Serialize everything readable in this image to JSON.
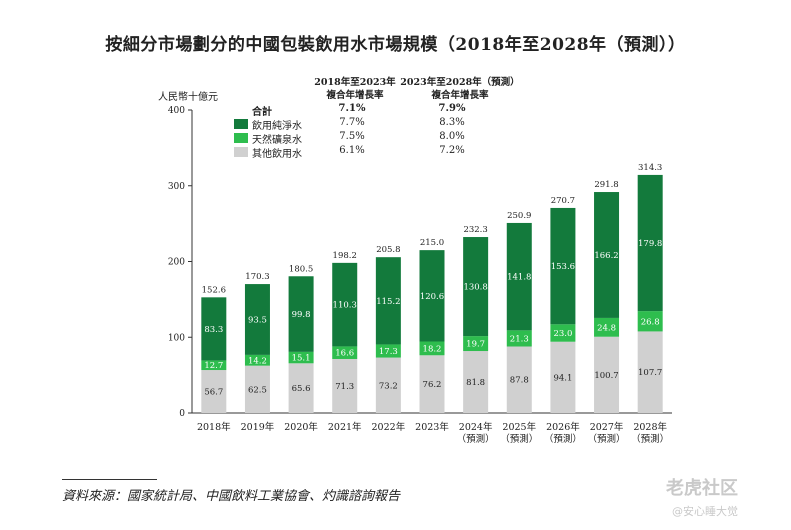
{
  "title": "按細分市場劃分的中國包裝飲用水市場規模（2018年至2028年（預測））",
  "unit_label": "人民幣十億元",
  "cagr_headers": [
    "2018年至2023年\n複合年增長率",
    "2023年至2028年（預測）\n複合年增長率"
  ],
  "legend": [
    {
      "label": "合計",
      "cagr_2018_2023": "7.1%",
      "cagr_2023_2028": "7.9%",
      "color": ""
    },
    {
      "label": "飲用純淨水",
      "cagr_2018_2023": "7.7%",
      "cagr_2023_2028": "8.3%",
      "color": "#137a3c"
    },
    {
      "label": "天然礦泉水",
      "cagr_2018_2023": "7.5%",
      "cagr_2023_2028": "8.0%",
      "color": "#2ebd4e"
    },
    {
      "label": "其他飲用水",
      "cagr_2018_2023": "6.1%",
      "cagr_2023_2028": "7.2%",
      "color": "#d0d0d0"
    }
  ],
  "chart_data": {
    "type": "bar",
    "stacked": true,
    "categories": [
      "2018年",
      "2019年",
      "2020年",
      "2021年",
      "2022年",
      "2023年",
      "2024年\n（預測）",
      "2025年\n（預測）",
      "2026年\n（預測）",
      "2027年\n（預測）",
      "2028年\n（預測）"
    ],
    "series": [
      {
        "name": "其他飲用水",
        "color": "#d0d0d0",
        "values": [
          56.7,
          62.5,
          65.6,
          71.3,
          73.2,
          76.2,
          81.8,
          87.8,
          94.1,
          100.7,
          107.7
        ]
      },
      {
        "name": "天然礦泉水",
        "color": "#2ebd4e",
        "values": [
          12.7,
          14.2,
          15.1,
          16.6,
          17.3,
          18.2,
          19.7,
          21.3,
          23.0,
          24.8,
          26.8
        ]
      },
      {
        "name": "飲用純淨水",
        "color": "#137a3c",
        "values": [
          83.3,
          93.5,
          99.8,
          110.3,
          115.2,
          120.6,
          130.8,
          141.8,
          153.6,
          166.2,
          179.8
        ]
      }
    ],
    "totals": [
      152.6,
      170.3,
      180.5,
      198.2,
      205.8,
      215.0,
      232.3,
      250.9,
      270.7,
      291.8,
      314.3
    ],
    "ylim": [
      0,
      400
    ],
    "yticks": [
      0,
      100,
      200,
      300,
      400
    ],
    "ylabel": "人民幣十億元",
    "grid": false
  },
  "source": "資料來源：國家統計局、中國飲料工業協會、灼識諮詢報告",
  "watermark": {
    "brand": "老虎社区",
    "user": "@安心睡大觉"
  }
}
